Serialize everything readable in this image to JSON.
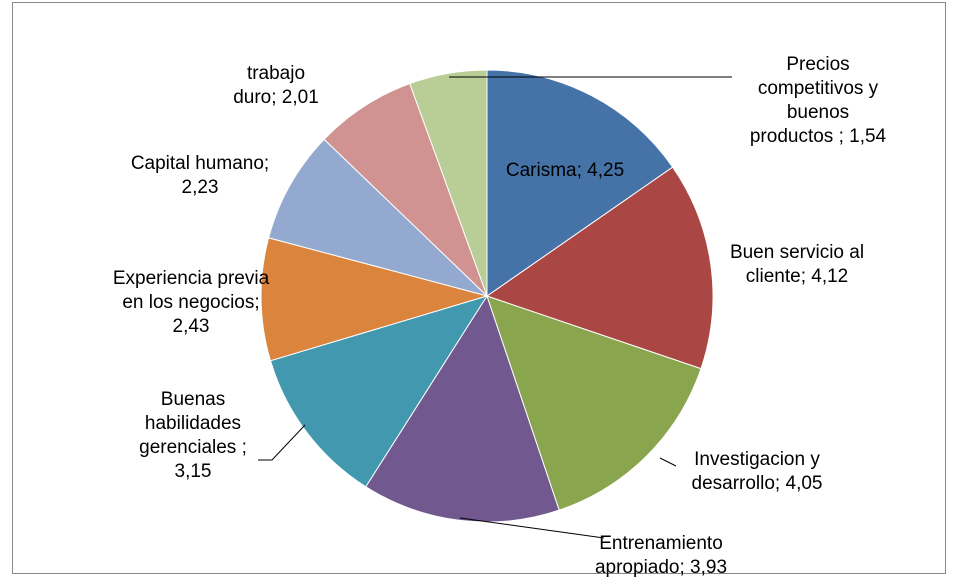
{
  "chart_data": {
    "type": "pie",
    "categories": [
      "Carisma;",
      "Buen servicio al cliente;",
      "Investigacion y desarrollo;",
      "Entrenamiento apropiado;",
      "Buenas habilidades gerenciales ;",
      "Experiencia previa en los negocios;",
      "Capital humano;",
      "trabajo duro;",
      "Precios competitivos y buenos productos ;"
    ],
    "values": [
      4.25,
      4.12,
      4.05,
      3.93,
      3.15,
      2.43,
      2.23,
      2.01,
      1.54
    ],
    "value_labels": [
      "4,25",
      "4,12",
      "4,05",
      "3,93",
      "3,15",
      "2,43",
      "2,23",
      "2,01",
      "1,54"
    ],
    "colors": [
      "#4572a7",
      "#aa4643",
      "#89a54e",
      "#71588f",
      "#4198af",
      "#db843d",
      "#93a9cf",
      "#d19392",
      "#b9cd96"
    ]
  }
}
